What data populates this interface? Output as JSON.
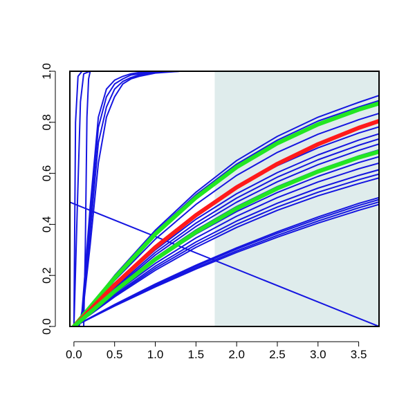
{
  "chart_data": {
    "type": "line",
    "title": "",
    "xlabel": "",
    "ylabel": "",
    "xlim": [
      -0.05,
      3.75
    ],
    "ylim": [
      0,
      1
    ],
    "x_ticks": [
      "0.0",
      "0.5",
      "1.0",
      "1.5",
      "2.0",
      "2.5",
      "3.0",
      "3.5"
    ],
    "x_tick_values": [
      0,
      0.5,
      1,
      1.5,
      2,
      2.5,
      3,
      3.5
    ],
    "y_ticks": [
      "0.0",
      "0.2",
      "0.4",
      "0.6",
      "0.8",
      "1.0"
    ],
    "y_tick_values": [
      0,
      0.2,
      0.4,
      0.6,
      0.8,
      1
    ],
    "shaded_region": {
      "x_from": 1.73,
      "x_to": 3.75,
      "color": "#dfecec"
    },
    "colors": {
      "curves": "#1515e0",
      "highlight_red": "#ff1a1a",
      "highlight_green": "#22e622",
      "frame": "#000000"
    },
    "series": [
      {
        "color": "blue",
        "x": [
          0,
          0.02,
          0.05,
          0.1,
          0.3,
          1,
          3.75
        ],
        "y": [
          0,
          0.8,
          0.98,
          1,
          1,
          1,
          1
        ]
      },
      {
        "color": "blue",
        "x": [
          0,
          0.04,
          0.08,
          0.12,
          0.2,
          1,
          3.75
        ],
        "y": [
          0,
          0.45,
          0.88,
          0.99,
          1,
          1,
          1
        ]
      },
      {
        "color": "blue",
        "x": [
          0.12,
          0.14,
          0.16,
          0.18,
          0.2,
          0.25,
          1,
          3.75
        ],
        "y": [
          0,
          0.3,
          0.82,
          0.97,
          1,
          1,
          1,
          1
        ]
      },
      {
        "color": "blue",
        "x": [
          0.06,
          0.1,
          0.2,
          0.3,
          0.4,
          0.5,
          0.6,
          0.7,
          0.8,
          1.0,
          1.3,
          3.75
        ],
        "y": [
          0,
          0.05,
          0.42,
          0.78,
          0.9,
          0.95,
          0.97,
          0.985,
          0.99,
          0.997,
          1,
          1
        ]
      },
      {
        "color": "blue",
        "x": [
          0.06,
          0.1,
          0.2,
          0.3,
          0.4,
          0.5,
          0.6,
          0.7,
          0.8,
          1.0,
          1.3,
          3.75
        ],
        "y": [
          0,
          0.06,
          0.47,
          0.82,
          0.93,
          0.965,
          0.98,
          0.99,
          0.995,
          0.999,
          1,
          1
        ]
      },
      {
        "color": "blue",
        "x": [
          0.06,
          0.1,
          0.2,
          0.3,
          0.4,
          0.5,
          0.6,
          0.7,
          0.8,
          1.0,
          1.3,
          3.75
        ],
        "y": [
          0,
          0.04,
          0.37,
          0.72,
          0.86,
          0.93,
          0.96,
          0.975,
          0.985,
          0.995,
          1,
          1
        ]
      },
      {
        "color": "blue",
        "x": [
          0.06,
          0.1,
          0.2,
          0.3,
          0.4,
          0.5,
          0.6,
          0.7,
          0.8,
          1.0,
          1.3,
          3.75
        ],
        "y": [
          0,
          0.03,
          0.32,
          0.64,
          0.82,
          0.9,
          0.95,
          0.97,
          0.98,
          0.993,
          1,
          1
        ]
      },
      {
        "color": "blue",
        "x": [
          -0.05,
          3.75
        ],
        "y": [
          0.487,
          0
        ]
      },
      {
        "color": "blue",
        "x": [
          0.0,
          0.5,
          1.0,
          1.5,
          2.0,
          2.5,
          3.0,
          3.5,
          3.75
        ],
        "y": [
          0.0,
          0.2,
          0.377,
          0.526,
          0.65,
          0.745,
          0.82,
          0.878,
          0.905
        ]
      },
      {
        "color": "blue",
        "x": [
          0.0,
          0.5,
          1.0,
          1.5,
          2.0,
          2.5,
          3.0,
          3.5,
          3.75
        ],
        "y": [
          0.0,
          0.196,
          0.37,
          0.516,
          0.636,
          0.73,
          0.805,
          0.86,
          0.885
        ]
      },
      {
        "color": "blue",
        "x": [
          0.0,
          0.5,
          1.0,
          1.5,
          2.0,
          2.5,
          3.0,
          3.5,
          3.75
        ],
        "y": [
          0.0,
          0.18,
          0.342,
          0.478,
          0.592,
          0.682,
          0.753,
          0.81,
          0.835
        ]
      },
      {
        "color": "blue",
        "x": [
          0.0,
          0.5,
          1.0,
          1.5,
          2.0,
          2.5,
          3.0,
          3.5,
          3.75
        ],
        "y": [
          0.0,
          0.165,
          0.315,
          0.44,
          0.545,
          0.63,
          0.7,
          0.758,
          0.782
        ]
      },
      {
        "color": "blue",
        "x": [
          0.0,
          0.5,
          1.0,
          1.5,
          2.0,
          2.5,
          3.0,
          3.5,
          3.75
        ],
        "y": [
          0.0,
          0.158,
          0.3,
          0.42,
          0.52,
          0.603,
          0.672,
          0.73,
          0.755
        ]
      },
      {
        "color": "blue",
        "x": [
          0.0,
          0.5,
          1.0,
          1.5,
          2.0,
          2.5,
          3.0,
          3.5,
          3.75
        ],
        "y": [
          0.0,
          0.152,
          0.29,
          0.405,
          0.503,
          0.585,
          0.653,
          0.71,
          0.735
        ]
      },
      {
        "color": "blue",
        "x": [
          0.0,
          0.5,
          1.0,
          1.5,
          2.0,
          2.5,
          3.0,
          3.5,
          3.75
        ],
        "y": [
          0.0,
          0.147,
          0.28,
          0.392,
          0.487,
          0.567,
          0.634,
          0.69,
          0.715
        ]
      },
      {
        "color": "blue",
        "x": [
          0.0,
          0.5,
          1.0,
          1.5,
          2.0,
          2.5,
          3.0,
          3.5,
          3.75
        ],
        "y": [
          0.0,
          0.142,
          0.27,
          0.378,
          0.47,
          0.548,
          0.613,
          0.668,
          0.692
        ]
      },
      {
        "color": "blue",
        "x": [
          0.0,
          0.5,
          1.0,
          1.5,
          2.0,
          2.5,
          3.0,
          3.5,
          3.75
        ],
        "y": [
          0.0,
          0.135,
          0.258,
          0.362,
          0.45,
          0.525,
          0.588,
          0.642,
          0.665
        ]
      },
      {
        "color": "blue",
        "x": [
          0.0,
          0.5,
          1.0,
          1.5,
          2.0,
          2.5,
          3.0,
          3.5,
          3.75
        ],
        "y": [
          0.0,
          0.13,
          0.247,
          0.347,
          0.432,
          0.505,
          0.566,
          0.618,
          0.64
        ]
      },
      {
        "color": "blue",
        "x": [
          0.0,
          0.5,
          1.0,
          1.5,
          2.0,
          2.5,
          3.0,
          3.5,
          3.75
        ],
        "y": [
          0.0,
          0.124,
          0.236,
          0.331,
          0.413,
          0.483,
          0.542,
          0.592,
          0.614
        ]
      },
      {
        "color": "blue",
        "x": [
          0.0,
          0.5,
          1.0,
          1.5,
          2.0,
          2.5,
          3.0,
          3.5,
          3.75
        ],
        "y": [
          0.0,
          0.12,
          0.228,
          0.32,
          0.4,
          0.468,
          0.526,
          0.575,
          0.597
        ]
      },
      {
        "color": "blue",
        "x": [
          0.0,
          0.5,
          1.0,
          1.5,
          2.0,
          2.5,
          3.0,
          3.5,
          3.75
        ],
        "y": [
          0.0,
          0.116,
          0.22,
          0.31,
          0.388,
          0.455,
          0.512,
          0.56,
          0.582
        ]
      },
      {
        "color": "blue",
        "x": [
          0.0,
          0.5,
          1.0,
          1.5,
          2.0,
          2.5,
          3.0,
          3.5,
          3.75
        ],
        "y": [
          0.0,
          0.08,
          0.155,
          0.225,
          0.29,
          0.35,
          0.405,
          0.455,
          0.478
        ]
      },
      {
        "color": "blue",
        "x": [
          0.0,
          0.5,
          1.0,
          1.5,
          2.0,
          2.5,
          3.0,
          3.5,
          3.75
        ],
        "y": [
          0.0,
          0.082,
          0.159,
          0.23,
          0.296,
          0.357,
          0.413,
          0.465,
          0.488
        ]
      },
      {
        "color": "blue",
        "x": [
          0.0,
          0.5,
          1.0,
          1.5,
          2.0,
          2.5,
          3.0,
          3.5,
          3.75
        ],
        "y": [
          0.0,
          0.084,
          0.163,
          0.236,
          0.303,
          0.365,
          0.422,
          0.474,
          0.497
        ]
      },
      {
        "color": "blue",
        "x": [
          0.0,
          0.5,
          1.0,
          1.5,
          2.0,
          2.5,
          3.0,
          3.5,
          3.75
        ],
        "y": [
          0.0,
          0.086,
          0.166,
          0.24,
          0.308,
          0.371,
          0.429,
          0.482,
          0.505
        ]
      },
      {
        "color": "green",
        "x": [
          0.0,
          0.5,
          1.0,
          1.5,
          2.0,
          2.5,
          3.0,
          3.5,
          3.75
        ],
        "y": [
          0.0,
          0.19,
          0.362,
          0.505,
          0.624,
          0.718,
          0.792,
          0.85,
          0.874
        ]
      },
      {
        "color": "red",
        "x": [
          0.0,
          0.5,
          1.0,
          1.5,
          2.0,
          2.5,
          3.0,
          3.5,
          3.75
        ],
        "y": [
          0.0,
          0.163,
          0.31,
          0.436,
          0.545,
          0.637,
          0.714,
          0.778,
          0.805
        ]
      },
      {
        "color": "green",
        "x": [
          0.0,
          0.5,
          1.0,
          1.5,
          2.0,
          2.5,
          3.0,
          3.5,
          3.75
        ],
        "y": [
          0.0,
          0.138,
          0.263,
          0.37,
          0.462,
          0.541,
          0.607,
          0.662,
          0.685
        ]
      }
    ]
  }
}
